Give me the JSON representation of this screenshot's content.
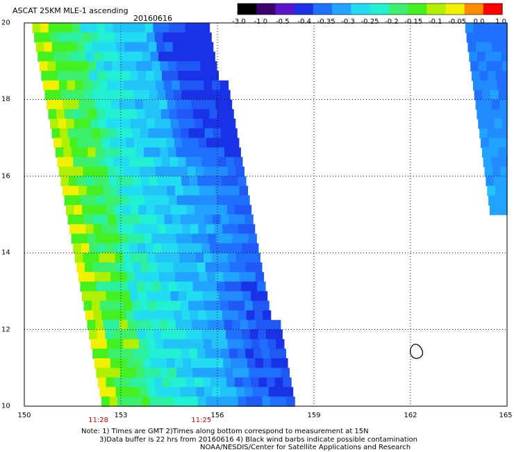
{
  "header": {
    "title": "ASCAT 25KM MLE-1 ascending",
    "date": "20160616"
  },
  "colorbar": {
    "labels": [
      "-3.0",
      "-1.0",
      "-0.5",
      "-0.4",
      "-0.35",
      "-0.3",
      "-0.25",
      "-0.2",
      "-0.15",
      "-0.1",
      "-0.05",
      "0.0",
      "1.0"
    ],
    "colors": [
      "#000000",
      "#3a006e",
      "#5a14cc",
      "#1a32e6",
      "#1f70ff",
      "#21a4ff",
      "#22dcf2",
      "#22f0d2",
      "#3cf06e",
      "#44f020",
      "#aef000",
      "#f0f000",
      "#ff8c00",
      "#ff0000"
    ]
  },
  "map": {
    "lon_ticks": [
      "150",
      "153",
      "156",
      "159",
      "162",
      "165"
    ],
    "lat_ticks": [
      "20",
      "18",
      "16",
      "14",
      "12",
      "10"
    ],
    "lon_range": [
      150,
      165
    ],
    "lat_range": [
      10,
      20
    ],
    "swath_times": [
      "11:28",
      "11:25"
    ],
    "swath_time_lons": [
      152.3,
      155.5
    ]
  },
  "notes": {
    "line1": "Note: 1) Times are GMT 2)Times along bottom correspond to measurement at 15N",
    "line2": "3)Data buffer is 22 hrs from 20160616 4) Black wind barbs indicate possible contamination",
    "line3": "NOAA/NESDIS/Center for Satellite Applications and Research"
  }
}
